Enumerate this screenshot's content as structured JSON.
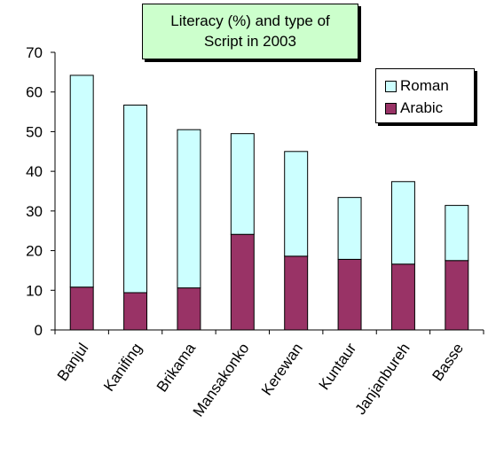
{
  "chart_data": {
    "type": "bar",
    "stacked": true,
    "title_line1": "Literacy (%) and type of",
    "title_line2": "Script in 2003",
    "xlabel": "",
    "ylabel": "",
    "ylim": [
      0,
      70
    ],
    "yticks": [
      0,
      10,
      20,
      30,
      40,
      50,
      60,
      70
    ],
    "grid": false,
    "legend_position": "top-right",
    "categories": [
      "Banjul",
      "Kanifing",
      "Brikama",
      "Mansakonko",
      "Kerewan",
      "Kuntaur",
      "Janjanbureh",
      "Basse"
    ],
    "series": [
      {
        "name": "Arabic",
        "color": "#993366",
        "values": [
          10.8,
          9.4,
          10.6,
          24.1,
          18.6,
          17.8,
          16.6,
          17.5
        ]
      },
      {
        "name": "Roman",
        "color": "#ccffff",
        "values": [
          53.4,
          47.3,
          39.9,
          25.4,
          26.4,
          15.6,
          20.8,
          13.9
        ]
      }
    ]
  },
  "legend": {
    "roman_label": "Roman",
    "arabic_label": "Arabic"
  }
}
